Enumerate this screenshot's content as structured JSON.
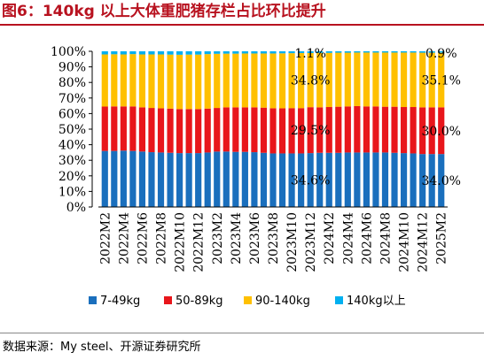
{
  "title": "图6：140kg 以上大体重肥猪存栏占比环比提升",
  "source": "数据来源：My steel、开源证券研究所",
  "chart_data": {
    "type": "bar",
    "stacked": true,
    "normalized_percent": true,
    "categories": [
      "2022M2",
      "2022M3",
      "2022M4",
      "2022M5",
      "2022M6",
      "2022M7",
      "2022M8",
      "2022M9",
      "2022M10",
      "2022M11",
      "2022M12",
      "2023M1",
      "2023M2",
      "2023M3",
      "2023M4",
      "2023M5",
      "2023M6",
      "2023M7",
      "2023M8",
      "2023M9",
      "2023M10",
      "2023M11",
      "2023M12",
      "2024M1",
      "2024M2",
      "2024M3",
      "2024M4",
      "2024M5",
      "2024M6",
      "2024M7",
      "2024M8",
      "2024M9",
      "2024M10",
      "2024M11",
      "2024M12",
      "2025M1",
      "2025M2"
    ],
    "x_tick_labels": [
      "2022M2",
      "2022M4",
      "2022M6",
      "2022M8",
      "2022M10",
      "2022M12",
      "2023M2",
      "2023M4",
      "2023M6",
      "2023M8",
      "2023M10",
      "2023M12",
      "2024M2",
      "2024M4",
      "2024M6",
      "2024M8",
      "2024M10",
      "2024M12",
      "2025M2"
    ],
    "y_tick_labels": [
      "0%",
      "10%",
      "20%",
      "30%",
      "40%",
      "50%",
      "60%",
      "70%",
      "80%",
      "90%",
      "100%"
    ],
    "ylim": [
      0,
      100
    ],
    "legend_position": "bottom",
    "series": [
      {
        "name": "7-49kg",
        "color": "#1a6fbd",
        "values": [
          36.0,
          36.0,
          36.2,
          36.0,
          35.6,
          35.2,
          35.0,
          34.8,
          34.6,
          34.6,
          34.6,
          35.0,
          35.6,
          35.6,
          35.4,
          35.4,
          35.2,
          34.8,
          34.4,
          34.4,
          34.4,
          34.4,
          34.6,
          34.8,
          34.8,
          34.8,
          35.0,
          35.0,
          35.0,
          35.0,
          35.0,
          34.8,
          34.6,
          34.4,
          34.0,
          34.0,
          34.0
        ]
      },
      {
        "name": "50-89kg",
        "color": "#e8161b",
        "values": [
          28.5,
          28.6,
          28.4,
          28.6,
          28.4,
          28.4,
          28.4,
          28.4,
          28.3,
          28.3,
          28.3,
          28.2,
          28.0,
          28.4,
          28.6,
          28.6,
          28.8,
          29.0,
          29.0,
          29.0,
          29.1,
          29.1,
          29.5,
          29.2,
          29.4,
          29.6,
          29.6,
          29.8,
          29.6,
          29.6,
          29.4,
          29.6,
          29.6,
          29.8,
          30.0,
          30.0,
          30.0
        ]
      },
      {
        "name": "90-140kg",
        "color": "#ffc000",
        "values": [
          33.5,
          33.5,
          33.4,
          33.6,
          34.0,
          34.4,
          34.6,
          34.7,
          34.9,
          35.0,
          35.0,
          35.0,
          34.8,
          34.5,
          34.5,
          34.6,
          34.6,
          34.8,
          35.2,
          35.3,
          35.3,
          35.4,
          34.8,
          35.0,
          34.8,
          34.7,
          34.5,
          34.4,
          34.6,
          34.6,
          34.8,
          34.8,
          35.0,
          35.0,
          35.1,
          35.1,
          35.1
        ]
      },
      {
        "name": "140kg以上",
        "color": "#00b0f0",
        "values": [
          2.0,
          1.9,
          2.0,
          1.8,
          2.0,
          2.0,
          2.0,
          2.1,
          2.2,
          2.1,
          2.1,
          1.8,
          1.6,
          1.5,
          1.5,
          1.4,
          1.4,
          1.4,
          1.4,
          1.3,
          1.2,
          1.1,
          1.1,
          1.0,
          1.0,
          0.9,
          0.9,
          0.8,
          0.8,
          0.8,
          0.8,
          0.8,
          0.8,
          0.8,
          0.9,
          0.9,
          0.9
        ]
      }
    ],
    "annotations": [
      {
        "category": "2023M12",
        "series": "140kg以上",
        "text": "1.1%"
      },
      {
        "category": "2023M12",
        "series": "90-140kg",
        "text": "34.8%"
      },
      {
        "category": "2023M12",
        "series": "50-89kg",
        "text": "29.5%"
      },
      {
        "category": "2023M12",
        "series": "7-49kg",
        "text": "34.6%"
      },
      {
        "category": "2025M2",
        "series": "140kg以上",
        "text": "0.9%"
      },
      {
        "category": "2025M2",
        "series": "90-140kg",
        "text": "35.1%"
      },
      {
        "category": "2025M2",
        "series": "50-89kg",
        "text": "30.0%"
      },
      {
        "category": "2025M2",
        "series": "7-49kg",
        "text": "34.0%"
      }
    ]
  }
}
